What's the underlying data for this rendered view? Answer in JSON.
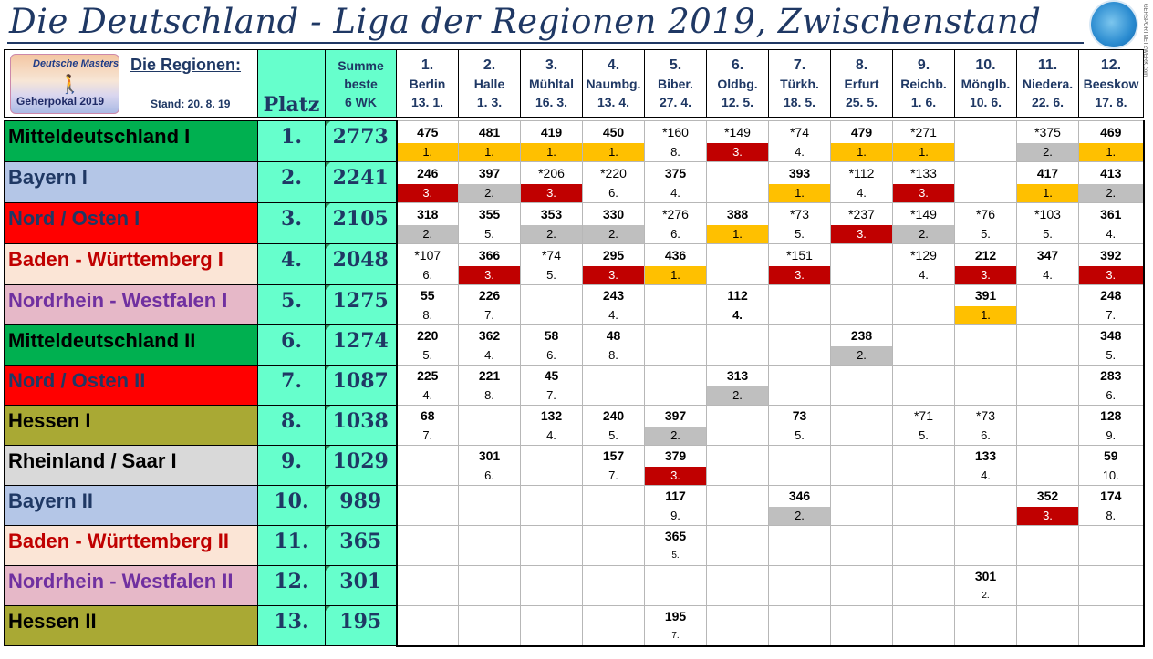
{
  "title": "Die Deutschland - Liga der Regionen 2019, Zwischenstand",
  "logo": {
    "icon": "network-globe-icon",
    "text": "GEHSPORTNETZWERK.com"
  },
  "header": {
    "badge_top": "Deutsche Masters",
    "badge_bottom": "Geherpokal 2019",
    "regions_label": "Die Regionen:",
    "stand": "Stand: 20. 8. 19",
    "platz": "Platz",
    "summe": [
      "Summe",
      "beste",
      "6 WK"
    ]
  },
  "venues": [
    {
      "n": "1.",
      "name": "Berlin",
      "date": "13. 1."
    },
    {
      "n": "2.",
      "name": "Halle",
      "date": "1. 3."
    },
    {
      "n": "3.",
      "name": "Mühltal",
      "date": "16. 3."
    },
    {
      "n": "4.",
      "name": "Naumbg.",
      "date": "13. 4."
    },
    {
      "n": "5.",
      "name": "Biber.",
      "date": "27. 4."
    },
    {
      "n": "6.",
      "name": "Oldbg.",
      "date": "12. 5."
    },
    {
      "n": "7.",
      "name": "Türkh.",
      "date": "18. 5."
    },
    {
      "n": "8.",
      "name": "Erfurt",
      "date": "25. 5."
    },
    {
      "n": "9.",
      "name": "Reichb.",
      "date": "1. 6."
    },
    {
      "n": "10.",
      "name": "Mönglb.",
      "date": "10. 6."
    },
    {
      "n": "11.",
      "name": "Niedera.",
      "date": "22. 6."
    },
    {
      "n": "12.",
      "name": "Beeskow",
      "date": "17. 8."
    }
  ],
  "rows": [
    {
      "region": "Mitteldeutschland  I",
      "color": "md",
      "platz": "1.",
      "summe": "2773",
      "scores": [
        "475",
        "481",
        "419",
        "450",
        "*160",
        "*149",
        "*74",
        "479",
        "*271",
        "",
        "*375",
        "469"
      ],
      "ranks": [
        "1.",
        "1.",
        "1.",
        "1.",
        "8.",
        "3.",
        "4.",
        "1.",
        "1.",
        "",
        "2.",
        "1."
      ],
      "rank_colors": [
        "gold",
        "gold",
        "gold",
        "gold",
        "white",
        "red",
        "white",
        "gold",
        "gold",
        "white",
        "grey",
        "gold"
      ]
    },
    {
      "region": "Bayern  I",
      "color": "bay",
      "platz": "2.",
      "summe": "2241",
      "scores": [
        "246",
        "397",
        "*206",
        "*220",
        "375",
        "",
        "393",
        "*112",
        "*133",
        "",
        "417",
        "413"
      ],
      "ranks": [
        "3.",
        "2.",
        "3.",
        "6.",
        "4.",
        "",
        "1.",
        "4.",
        "3.",
        "",
        "1.",
        "2."
      ],
      "rank_colors": [
        "red",
        "grey",
        "red",
        "white",
        "white",
        "white",
        "gold",
        "white",
        "red",
        "white",
        "gold",
        "grey"
      ]
    },
    {
      "region": "Nord / Osten I",
      "color": "no",
      "platz": "3.",
      "summe": "2105",
      "scores": [
        "318",
        "355",
        "353",
        "330",
        "*276",
        "388",
        "*73",
        "*237",
        "*149",
        "*76",
        "*103",
        "361"
      ],
      "ranks": [
        "2.",
        "5.",
        "2.",
        "2.",
        "6.",
        "1.",
        "5.",
        "3.",
        "2.",
        "5.",
        "5.",
        "4."
      ],
      "rank_colors": [
        "grey",
        "white",
        "grey",
        "grey",
        "white",
        "gold",
        "white",
        "red",
        "grey",
        "white",
        "white",
        "white"
      ]
    },
    {
      "region": "Baden - Württemberg I",
      "color": "bw",
      "platz": "4.",
      "summe": "2048",
      "scores": [
        "*107",
        "366",
        "*74",
        "295",
        "436",
        "",
        "*151",
        "",
        "*129",
        "212",
        "347",
        "392"
      ],
      "ranks": [
        "6.",
        "3.",
        "5.",
        "3.",
        "1.",
        "",
        "3.",
        "",
        "4.",
        "3.",
        "4.",
        "3."
      ],
      "rank_colors": [
        "white",
        "red",
        "white",
        "red",
        "gold",
        "white",
        "red",
        "white",
        "white",
        "red",
        "white",
        "red"
      ]
    },
    {
      "region": "Nordrhein - Westfalen I",
      "color": "nw",
      "platz": "5.",
      "summe": "1275",
      "scores": [
        "55",
        "226",
        "",
        "243",
        "",
        "112",
        "",
        "",
        "",
        "391",
        "",
        "248"
      ],
      "ranks": [
        "8.",
        "7.",
        "",
        "4.",
        "",
        "4.",
        "",
        "",
        "",
        "1.",
        "",
        "7."
      ],
      "rank_colors": [
        "white",
        "white",
        "white",
        "white",
        "white",
        "white",
        "white",
        "white",
        "white",
        "gold",
        "white",
        "white"
      ]
    },
    {
      "region": "Mitteldeutschland II",
      "color": "md",
      "platz": "6.",
      "summe": "1274",
      "scores": [
        "220",
        "362",
        "58",
        "48",
        "",
        "",
        "",
        "238",
        "",
        "",
        "",
        "348"
      ],
      "ranks": [
        "5.",
        "4.",
        "6.",
        "8.",
        "",
        "",
        "",
        "2.",
        "",
        "",
        "",
        "5."
      ],
      "rank_colors": [
        "white",
        "white",
        "white",
        "white",
        "white",
        "white",
        "white",
        "grey",
        "white",
        "white",
        "white",
        "white"
      ]
    },
    {
      "region": "Nord / Osten II",
      "color": "no",
      "platz": "7.",
      "summe": "1087",
      "scores": [
        "225",
        "221",
        "45",
        "",
        "",
        "313",
        "",
        "",
        "",
        "",
        "",
        "283"
      ],
      "ranks": [
        "4.",
        "8.",
        "7.",
        "",
        "",
        "2.",
        "",
        "",
        "",
        "",
        "",
        "6."
      ],
      "rank_colors": [
        "white",
        "white",
        "white",
        "white",
        "white",
        "grey",
        "white",
        "white",
        "white",
        "white",
        "white",
        "white"
      ]
    },
    {
      "region": "Hessen I",
      "color": "he",
      "platz": "8.",
      "summe": "1038",
      "scores": [
        "68",
        "",
        "132",
        "240",
        "397",
        "",
        "73",
        "",
        "*71",
        "*73",
        "",
        "128"
      ],
      "ranks": [
        "7.",
        "",
        "4.",
        "5.",
        "2.",
        "",
        "5.",
        "",
        "5.",
        "6.",
        "",
        "9."
      ],
      "rank_colors": [
        "white",
        "white",
        "white",
        "white",
        "grey",
        "white",
        "white",
        "white",
        "white",
        "white",
        "white",
        "white"
      ]
    },
    {
      "region": "Rheinland / Saar I",
      "color": "rs",
      "platz": "9.",
      "summe": "1029",
      "scores": [
        "",
        "301",
        "",
        "157",
        "379",
        "",
        "",
        "",
        "",
        "133",
        "",
        "59"
      ],
      "ranks": [
        "",
        "6.",
        "",
        "7.",
        "3.",
        "",
        "",
        "",
        "",
        "4.",
        "",
        "10."
      ],
      "rank_colors": [
        "white",
        "white",
        "white",
        "white",
        "red",
        "white",
        "white",
        "white",
        "white",
        "white",
        "white",
        "white"
      ]
    },
    {
      "region": "Bayern  II",
      "color": "bay",
      "platz": "10.",
      "summe": "989",
      "scores": [
        "",
        "",
        "",
        "",
        "117",
        "",
        "346",
        "",
        "",
        "",
        "352",
        "174"
      ],
      "ranks": [
        "",
        "",
        "",
        "",
        "9.",
        "",
        "2.",
        "",
        "",
        "",
        "3.",
        "8."
      ],
      "rank_colors": [
        "white",
        "white",
        "white",
        "white",
        "white",
        "white",
        "grey",
        "white",
        "white",
        "white",
        "red",
        "white"
      ]
    },
    {
      "region": "Baden - Württemberg II",
      "color": "bw",
      "platz": "11.",
      "summe": "365",
      "scores": [
        "",
        "",
        "",
        "",
        "365",
        "",
        "",
        "",
        "",
        "",
        "",
        ""
      ],
      "ranks": [
        "",
        "",
        "",
        "",
        "5.",
        "",
        "",
        "",
        "",
        "",
        "",
        ""
      ],
      "rank_colors": [
        "white",
        "white",
        "white",
        "white",
        "white",
        "white",
        "white",
        "white",
        "white",
        "white",
        "white",
        "white"
      ]
    },
    {
      "region": "Nordrhein - Westfalen II",
      "color": "nw",
      "platz": "12.",
      "summe": "301",
      "scores": [
        "",
        "",
        "",
        "",
        "",
        "",
        "",
        "",
        "",
        "301",
        "",
        ""
      ],
      "ranks": [
        "",
        "",
        "",
        "",
        "",
        "",
        "",
        "",
        "",
        "2.",
        "",
        ""
      ],
      "rank_colors": [
        "white",
        "white",
        "white",
        "white",
        "white",
        "white",
        "white",
        "white",
        "white",
        "white",
        "white",
        "white"
      ]
    },
    {
      "region": "Hessen II",
      "color": "he",
      "platz": "13.",
      "summe": "195",
      "scores": [
        "",
        "",
        "",
        "",
        "195",
        "",
        "",
        "",
        "",
        "",
        "",
        ""
      ],
      "ranks": [
        "",
        "",
        "",
        "",
        "7.",
        "",
        "",
        "",
        "",
        "",
        "",
        ""
      ],
      "rank_colors": [
        "white",
        "white",
        "white",
        "white",
        "white",
        "white",
        "white",
        "white",
        "white",
        "white",
        "white",
        "white"
      ]
    }
  ]
}
